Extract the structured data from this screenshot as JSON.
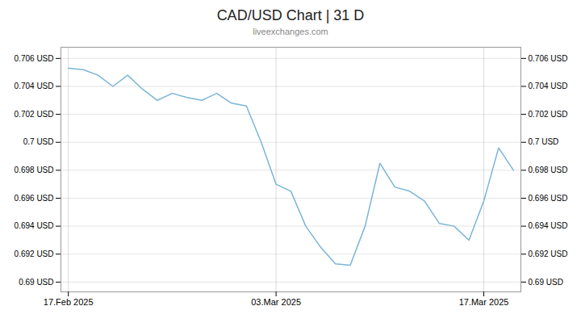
{
  "chart_data": {
    "type": "line",
    "title": "CAD/USD Chart | 31 D",
    "subtitle": "liveexchanges.com",
    "color": "#7ab5d8",
    "x": [
      0,
      1,
      2,
      3,
      4,
      5,
      6,
      7,
      8,
      9,
      10,
      11,
      12,
      13,
      14,
      15,
      16,
      17,
      18,
      19,
      20,
      21,
      22,
      23,
      24,
      25,
      26,
      27,
      28,
      29,
      30
    ],
    "values": [
      0.7053,
      0.7052,
      0.7048,
      0.704,
      0.7048,
      0.7038,
      0.703,
      0.7035,
      0.7032,
      0.703,
      0.7035,
      0.7028,
      0.7026,
      0.7,
      0.697,
      0.6965,
      0.694,
      0.6925,
      0.6913,
      0.6912,
      0.694,
      0.6985,
      0.6968,
      0.6965,
      0.6958,
      0.6942,
      0.694,
      0.693,
      0.6958,
      0.6996,
      0.698
    ],
    "xlim": [
      -0.5,
      30.5
    ],
    "xticks": [
      {
        "value": 0,
        "label": "17.Feb 2025"
      },
      {
        "value": 14,
        "label": "03.Mar 2025"
      },
      {
        "value": 28,
        "label": "17.Mar 2025"
      }
    ],
    "ylim": [
      0.6893,
      0.7068
    ],
    "yticks": [
      {
        "value": 0.69,
        "label": "0.69 USD"
      },
      {
        "value": 0.692,
        "label": "0.692 USD"
      },
      {
        "value": 0.694,
        "label": "0.694 USD"
      },
      {
        "value": 0.696,
        "label": "0.696 USD"
      },
      {
        "value": 0.698,
        "label": "0.698 USD"
      },
      {
        "value": 0.7,
        "label": "0.7 USD"
      },
      {
        "value": 0.702,
        "label": "0.702 USD"
      },
      {
        "value": 0.704,
        "label": "0.704 USD"
      },
      {
        "value": 0.706,
        "label": "0.706 USD"
      }
    ],
    "grid": true
  }
}
